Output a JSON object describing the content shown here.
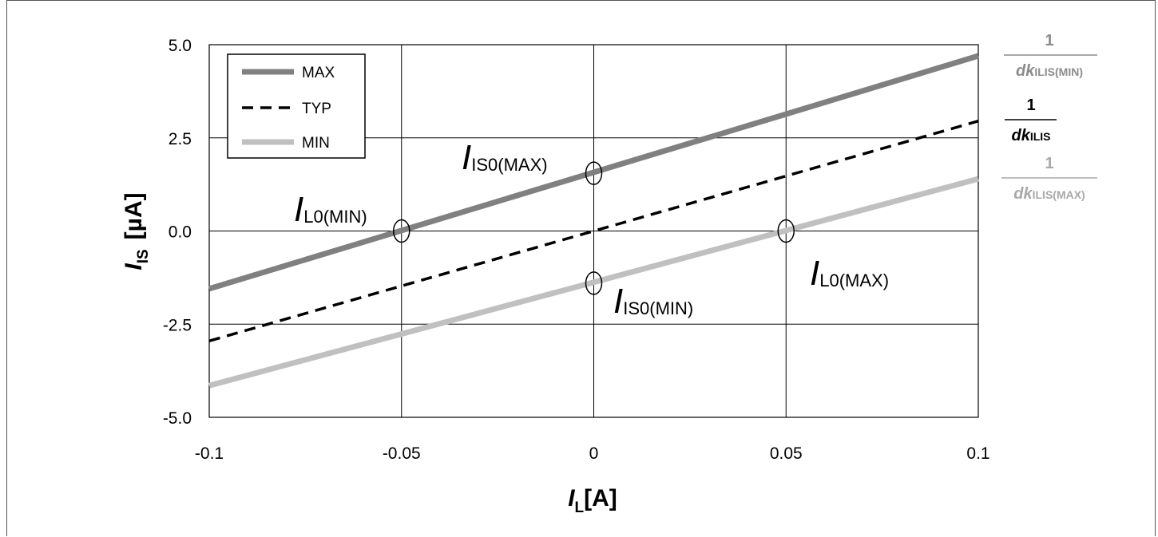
{
  "chart_data": {
    "type": "line",
    "xlabel": {
      "main": "I",
      "sub": "L",
      "unit": "[A]"
    },
    "ylabel": {
      "main": "I",
      "sub": "IS",
      "unit": "[µA]"
    },
    "xlim": [
      -0.1,
      0.1
    ],
    "ylim": [
      -5.0,
      5.0
    ],
    "x_ticks": [
      "-0.1",
      "-0.05",
      "0",
      "0.05",
      "0.1"
    ],
    "y_ticks": [
      "5.0",
      "2.5",
      "0.0",
      "-2.5",
      "-5.0"
    ],
    "x_tick_values": [
      -0.1,
      -0.05,
      0,
      0.05,
      0.1
    ],
    "y_tick_values": [
      5.0,
      2.5,
      0.0,
      -2.5,
      -5.0
    ],
    "grid": true,
    "legend_position": "top-left",
    "series": [
      {
        "name": "MAX",
        "x": [
          -0.1,
          0.1
        ],
        "y": [
          -1.55,
          4.7
        ],
        "color": "#808080",
        "style": "solid"
      },
      {
        "name": "TYP",
        "x": [
          -0.1,
          0.1
        ],
        "y": [
          -2.95,
          2.95
        ],
        "color": "#000000",
        "style": "dashed"
      },
      {
        "name": "MIN",
        "x": [
          -0.1,
          0.1
        ],
        "y": [
          -4.15,
          1.4
        ],
        "color": "#c0c0c0",
        "style": "solid"
      }
    ],
    "annotations": [
      {
        "main": "I",
        "sub": "IS0(MAX)"
      },
      {
        "main": "I",
        "sub": "L0(MIN)"
      },
      {
        "main": "I",
        "sub": "L0(MAX)"
      },
      {
        "main": "I",
        "sub": "IS0(MIN)"
      }
    ],
    "markers": [
      {
        "x": -0.05,
        "y": 0.0
      },
      {
        "x": 0.0,
        "y": 1.55
      },
      {
        "x": 0.0,
        "y": -1.4
      },
      {
        "x": 0.05,
        "y": 0.0
      }
    ],
    "slope_labels": [
      {
        "num": "1",
        "den_main": "dk",
        "den_sub": "ILIS(MIN)",
        "color": "#8c8c8c"
      },
      {
        "num": "1",
        "den_main": "dk",
        "den_sub": "ILIS",
        "color": "#000000"
      },
      {
        "num": "1",
        "den_main": "dk",
        "den_sub": "ILIS(MAX)",
        "color": "#a8a8a8"
      }
    ]
  }
}
